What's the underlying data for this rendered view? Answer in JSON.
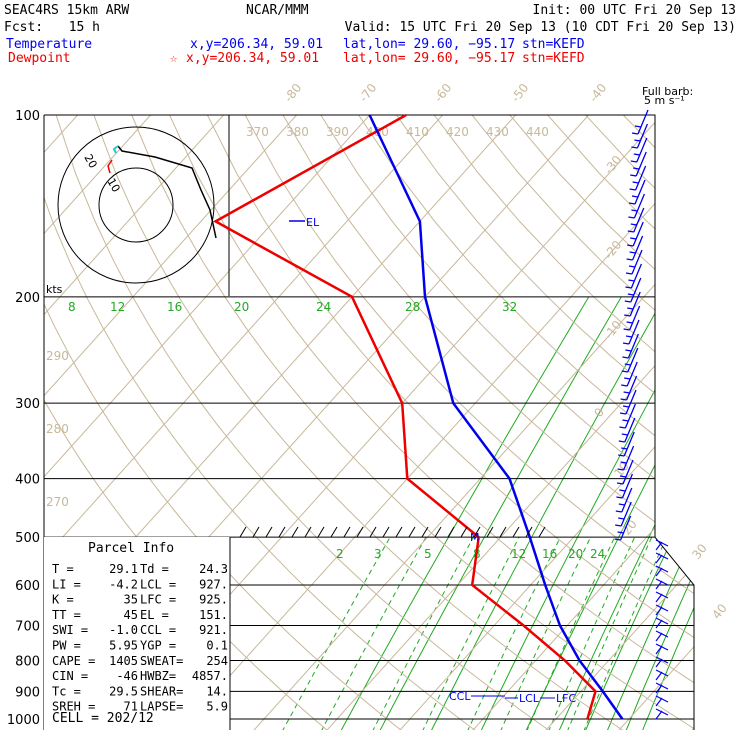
{
  "header": {
    "model": "SEAC4RS 15km ARW",
    "org": "NCAR/MMM",
    "init": "Init: 00 UTC Fri 20 Sep 13",
    "fcst_label": "Fcst:",
    "fcst_value": "15 h",
    "valid": "Valid: 15 UTC Fri 20 Sep 13 (10 CDT Fri 20 Sep 13)",
    "temp_label": "Temperature",
    "temp_xy": "x,y=206.34, 59.01",
    "temp_latlon": "lat,lon= 29.60, −95.17",
    "temp_stn": "stn=KEFD",
    "dew_label": "Dewpoint",
    "dew_xy": "x,y=206.34, 59.01",
    "dew_latlon": "lat,lon= 29.60, −95.17",
    "dew_stn": "stn=KEFD"
  },
  "colors": {
    "temperature": "#0000ee",
    "dewpoint": "#ee0000",
    "isotherm": "#c8b89a",
    "mixing_ratio": "#22aa22",
    "hodo_black": "#000000",
    "hodo_cyan": "#22cccc"
  },
  "chart_data": {
    "type": "line",
    "title": "",
    "pressure_levels": [
      "100",
      "200",
      "300",
      "400",
      "500",
      "600",
      "700",
      "800",
      "900",
      "1000"
    ],
    "temperature_profile": {
      "name": "Temperature",
      "points": [
        [
          100,
          -80
        ],
        [
          150,
          -60
        ],
        [
          200,
          -50
        ],
        [
          300,
          -33
        ],
        [
          400,
          -16
        ],
        [
          500,
          -6
        ],
        [
          600,
          2
        ],
        [
          700,
          9
        ],
        [
          800,
          16
        ],
        [
          900,
          23
        ],
        [
          1000,
          29.1
        ]
      ]
    },
    "dewpoint_profile": {
      "name": "Dewpoint",
      "points": [
        [
          100,
          -75
        ],
        [
          150,
          -88
        ],
        [
          200,
          -60
        ],
        [
          300,
          -40
        ],
        [
          400,
          -30
        ],
        [
          500,
          -13
        ],
        [
          600,
          -8
        ],
        [
          700,
          4
        ],
        [
          800,
          14
        ],
        [
          900,
          22
        ],
        [
          1000,
          24.3
        ]
      ]
    },
    "isotherm_labels_top": [
      "-80",
      "-70",
      "-60",
      "-50",
      "-40"
    ],
    "isotherm_labels_right": [
      "-30",
      "-20",
      "-10",
      "0",
      "10",
      "20",
      "30",
      "40"
    ],
    "theta_labels_top": [
      "370",
      "380",
      "390",
      "400",
      "410",
      "420",
      "430",
      "440"
    ],
    "theta_labels_left": [
      "290",
      "280",
      "270"
    ],
    "mixing_ratio_labels_upper": [
      "8",
      "12",
      "16",
      "20",
      "24",
      "28",
      "32"
    ],
    "mixing_ratio_labels_lower": [
      "2",
      "3",
      "5",
      "8",
      "12",
      "16",
      "20",
      "24"
    ],
    "level_markers": [
      "EL",
      "CCL",
      "LCL",
      "LFC",
      "M"
    ]
  },
  "hodograph": {
    "units": "kts",
    "ring_labels": [
      "10",
      "20"
    ]
  },
  "wind_legend": {
    "line1": "Full barb:",
    "line2": "5 m s⁻¹"
  },
  "parcel_info": {
    "title": "Parcel Info",
    "rows": [
      {
        "a": "T  =",
        "b": "29.1",
        "c": "Td =",
        "d": "24.3"
      },
      {
        "a": "LI =",
        "b": "-4.2",
        "c": "LCL =",
        "d": "927."
      },
      {
        "a": "K  =",
        "b": "35",
        "c": "LFC =",
        "d": "925."
      },
      {
        "a": "TT =",
        "b": "45",
        "c": "EL =",
        "d": "151."
      },
      {
        "a": "SWI =",
        "b": "-1.0",
        "c": "CCL =",
        "d": "921."
      },
      {
        "a": "PW =",
        "b": "5.95",
        "c": "YGP =",
        "d": "0.1"
      },
      {
        "a": "CAPE =",
        "b": "1405",
        "c": "SWEAT=",
        "d": "254"
      },
      {
        "a": "CIN =",
        "b": "-46",
        "c": "HWBZ=",
        "d": "4857."
      },
      {
        "a": "Tc =",
        "b": "29.5",
        "c": "SHEAR=",
        "d": "14."
      },
      {
        "a": "SREH =",
        "b": "71",
        "c": "LAPSE=",
        "d": "5.9"
      }
    ],
    "cell_label": "CELL = 202/12"
  }
}
